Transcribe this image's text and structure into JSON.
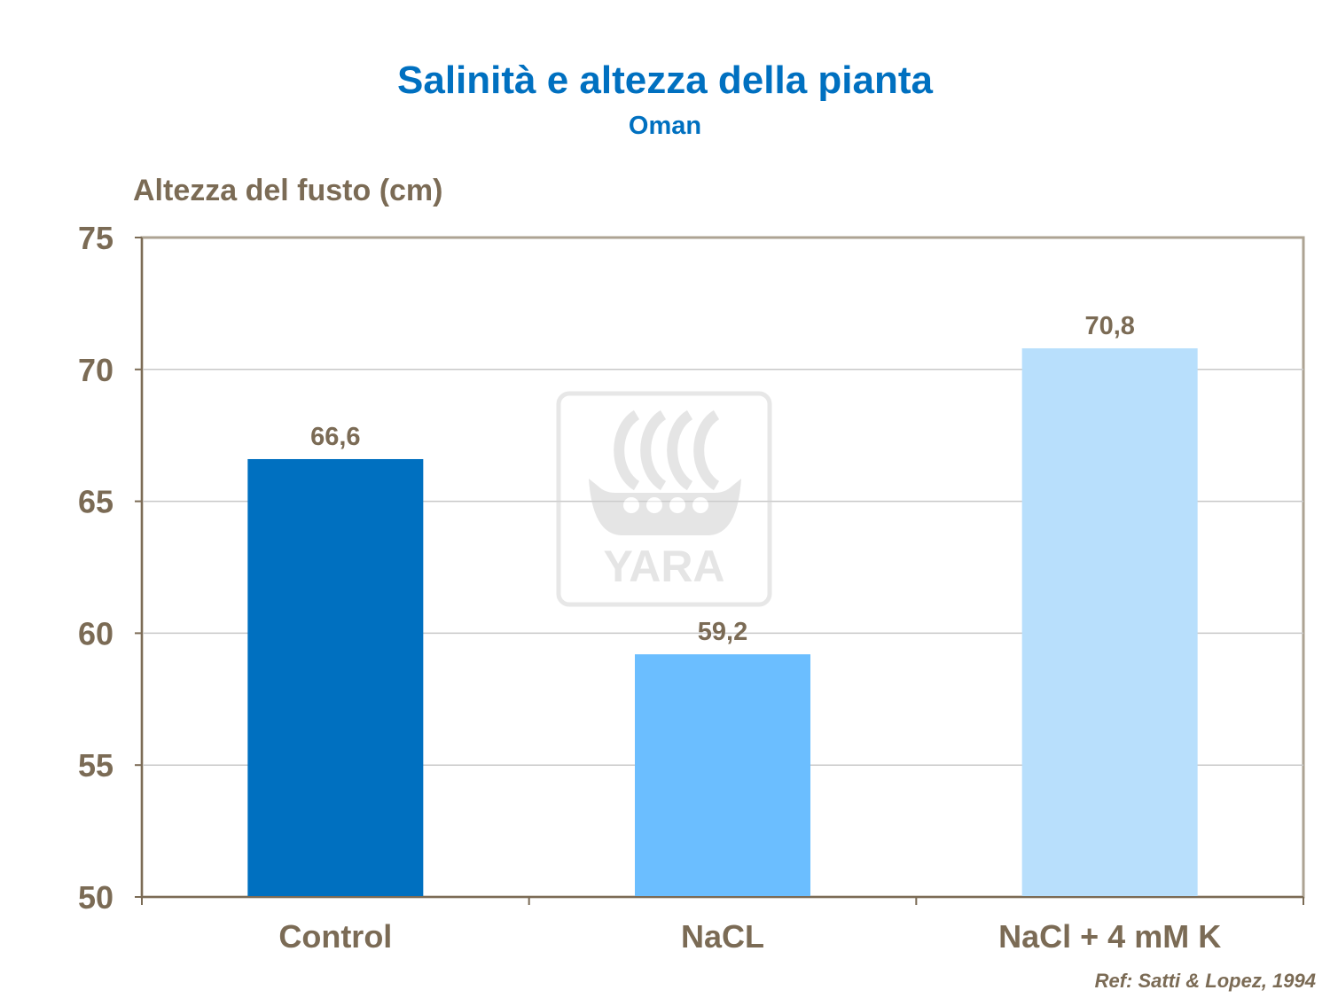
{
  "chart_data": {
    "type": "bar",
    "title": "Salinità e altezza della pianta",
    "subtitle": "Oman",
    "ylabel": "Altezza del fusto (cm)",
    "xlabel": "",
    "categories": [
      "Control",
      "NaCL",
      "NaCl + 4 mM K"
    ],
    "values": [
      66.6,
      59.2,
      70.8
    ],
    "value_labels": [
      "66,6",
      "59,2",
      "70,8"
    ],
    "bar_colors": [
      "#0070C0",
      "#6BBEFF",
      "#B8DFFC"
    ],
    "ylim": [
      50,
      75
    ],
    "yticks": [
      50,
      55,
      60,
      65,
      70,
      75
    ],
    "grid": true,
    "legend": "none"
  },
  "watermark": {
    "icon": "yara-viking-ship-icon",
    "text": "YARA"
  },
  "reference": "Ref: Satti & Lopez, 1994"
}
